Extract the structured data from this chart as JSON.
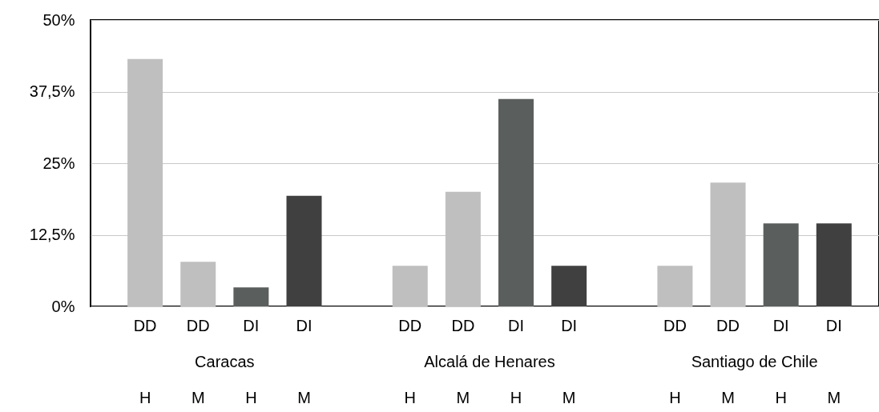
{
  "chart_data": {
    "type": "bar",
    "categories": [
      "DD",
      "DD",
      "DI",
      "DI",
      "DD",
      "DD",
      "DI",
      "DI",
      "DD",
      "DD",
      "DI",
      "DI"
    ],
    "values": [
      43.2,
      7.8,
      3.3,
      19.3,
      7.1,
      20,
      36.2,
      7.1,
      7.1,
      21.6,
      14.5,
      14.5
    ],
    "colors": [
      "#bfbfbf",
      "#bfbfbf",
      "#5a5e5c",
      "#404040",
      "#bfbfbf",
      "#bfbfbf",
      "#5a5e5c",
      "#404040",
      "#bfbfbf",
      "#bfbfbf",
      "#5a5e5c",
      "#404040"
    ],
    "annotations": [
      "Caracas",
      "Alcalá de Henares",
      "Santiago de Chile",
      "H",
      "M",
      "H",
      "M",
      "H",
      "M",
      "H",
      "M",
      "H",
      "M",
      "H",
      "M"
    ],
    "ylim": [
      0,
      50
    ],
    "yticks": [
      {
        "value": 0,
        "label": "0%"
      },
      {
        "value": 12.5,
        "label": "12,5%"
      },
      {
        "value": 25,
        "label": "25%"
      },
      {
        "value": 37.5,
        "label": "37,5%"
      },
      {
        "value": 50,
        "label": "50%"
      }
    ],
    "grid": "y"
  }
}
